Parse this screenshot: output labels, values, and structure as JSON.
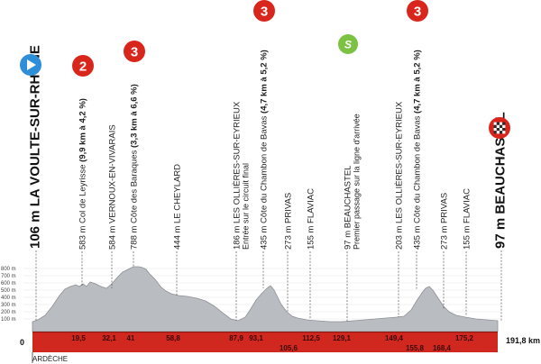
{
  "axis": {
    "zero_label": "0",
    "total_distance_label": "191,8 km",
    "region_label": "ARDÈCHE",
    "altitude_ticks": [
      "100 m",
      "200 m",
      "300 m",
      "400 m",
      "500 m",
      "600 m",
      "700 m",
      "800 m"
    ]
  },
  "km_markers": [
    "19,5",
    "32,1",
    "41",
    "58,8",
    "87,9",
    "93,1",
    "105,6",
    "112,5",
    "129,1",
    "149,4",
    "155,8",
    "168,4",
    "175,2"
  ],
  "points": [
    {
      "id": "start",
      "text": "106 m LA VOULTE-SUR-RHÔNE",
      "icon": "start-flag-icon"
    },
    {
      "id": "leyrisse",
      "text": "583 m Col de Leyrisse",
      "bold": " (9,9 km à 4,2 %)",
      "badge": "2"
    },
    {
      "id": "vernoux",
      "text": "584 m VERNOUX-EN-VIVARAIS"
    },
    {
      "id": "baraques",
      "text": "788 m Côte des Baraques",
      "bold": " (3,3 km à 6,6 %)",
      "badge": "3"
    },
    {
      "id": "cheylard",
      "text": "444 m LE CHEYLARD"
    },
    {
      "id": "ollieres1",
      "text": "186 m LES OLLIÈRES-SUR-EYRIEUX",
      "sub": "Entrée sur le circuit final"
    },
    {
      "id": "bavas1",
      "text": "435 m Côte du Chambon de Bavas",
      "bold": " (4,7 km à 5,2 %)",
      "badge": "3"
    },
    {
      "id": "privas1",
      "text": "273 m PRIVAS"
    },
    {
      "id": "flaviac1",
      "text": "155 m FLAVIAC"
    },
    {
      "id": "beauchastel1",
      "text": "97 m BEAUCHASTEL",
      "sub": "Premier passage sur la ligne d'arrivée",
      "icon": "sprint-icon",
      "badge_text": "S"
    },
    {
      "id": "ollieres2",
      "text": "203 m LES OLLIÈRES-SUR-EYRIEUX"
    },
    {
      "id": "bavas2",
      "text": "435 m Côte du Chambon de Bavas",
      "bold": " (4,7 km à 5,2 %)",
      "badge": "3"
    },
    {
      "id": "privas2",
      "text": "273 m PRIVAS"
    },
    {
      "id": "flaviac2",
      "text": "155 m FLAVIAC"
    },
    {
      "id": "finish",
      "text": "97 m BEAUCHASTEL",
      "icon": "finish-flag-icon"
    }
  ],
  "colors": {
    "profile_fill": "#b9bcc0",
    "profile_stroke": "#8d9196",
    "axis_band": "#d0271e",
    "badge_red": "#d8261c",
    "sprint_green": "#7cc242",
    "start_blue": "#2e8fd8",
    "guide_line": "#555555"
  }
}
